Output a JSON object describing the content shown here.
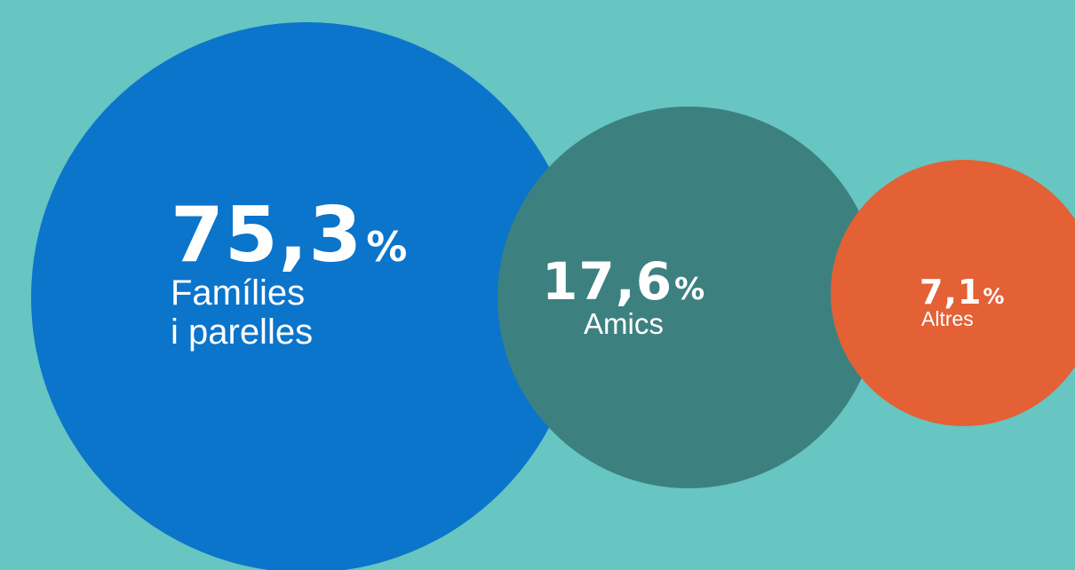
{
  "background_color": "#67C5C2",
  "chart_data": {
    "type": "bubble",
    "unit": "%",
    "series": [
      {
        "value": "75,3",
        "label": "Famílies\ni parelles",
        "color": "#0B74CB"
      },
      {
        "value": "17,6",
        "label": "Amics",
        "color": "#3C8180"
      },
      {
        "value": "7,1",
        "label": "Altres",
        "color": "#E46035"
      }
    ]
  }
}
